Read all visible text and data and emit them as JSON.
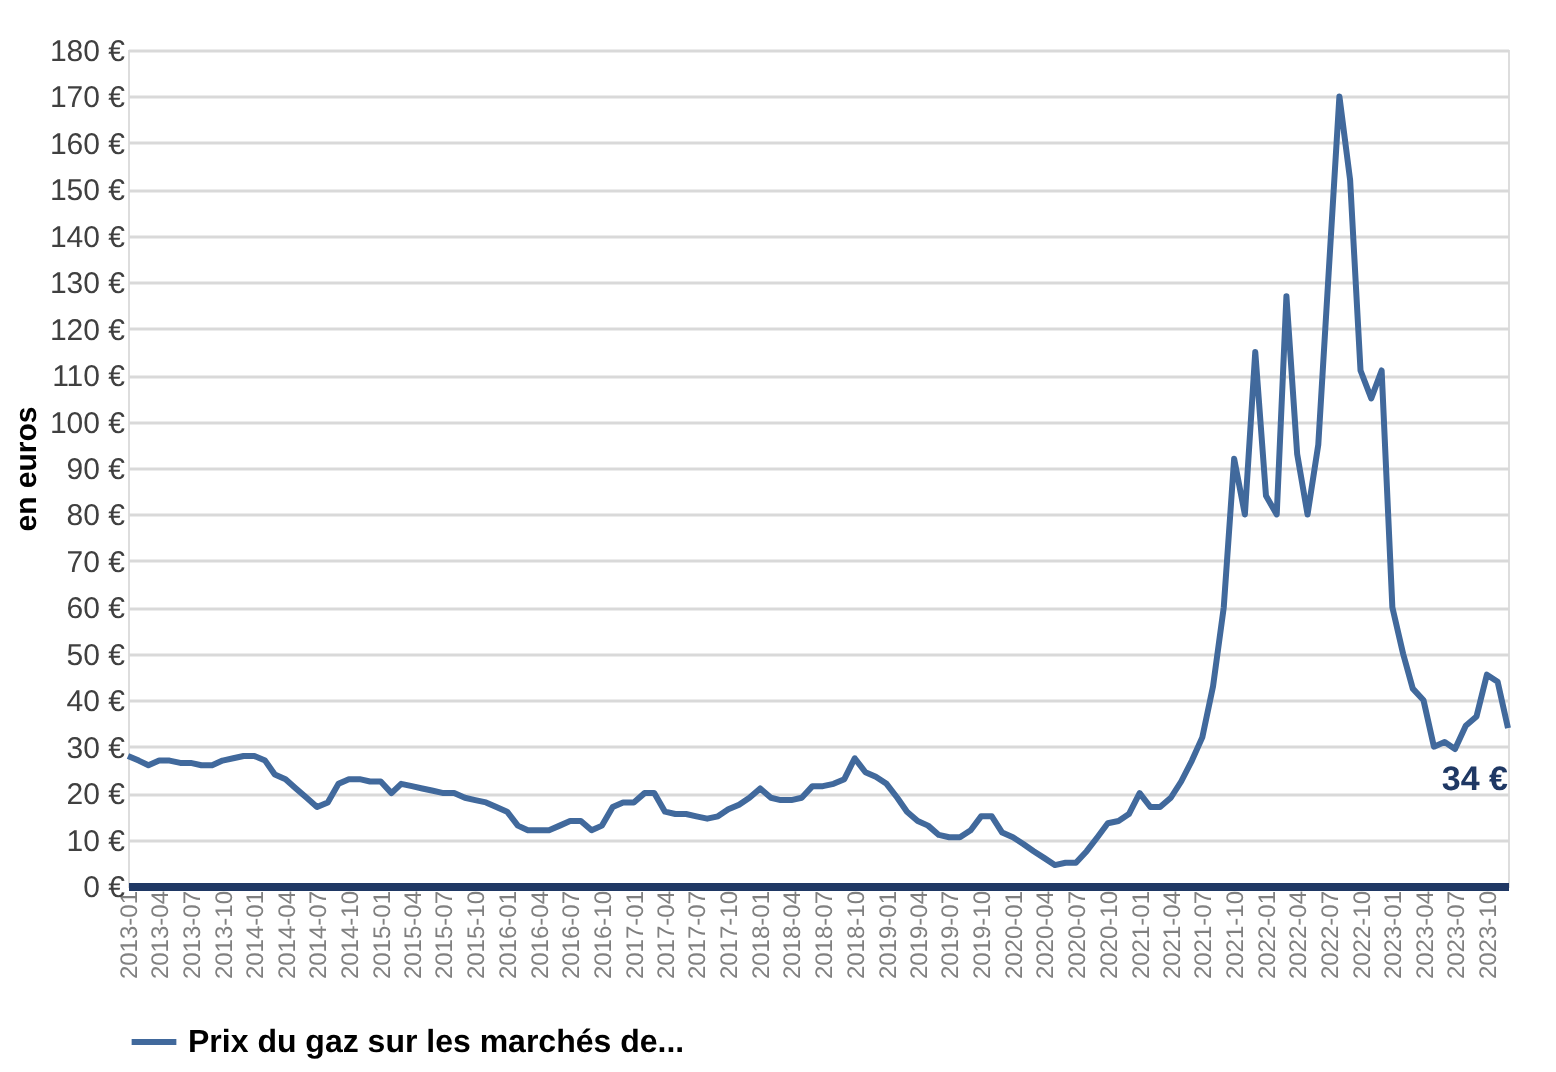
{
  "chart_data": {
    "type": "line",
    "ylabel": "en euros",
    "x": [
      "2013-01",
      "2013-02",
      "2013-03",
      "2013-04",
      "2013-05",
      "2013-06",
      "2013-07",
      "2013-08",
      "2013-09",
      "2013-10",
      "2013-11",
      "2013-12",
      "2014-01",
      "2014-02",
      "2014-03",
      "2014-04",
      "2014-05",
      "2014-06",
      "2014-07",
      "2014-08",
      "2014-09",
      "2014-10",
      "2014-11",
      "2014-12",
      "2015-01",
      "2015-02",
      "2015-03",
      "2015-04",
      "2015-05",
      "2015-06",
      "2015-07",
      "2015-08",
      "2015-09",
      "2015-10",
      "2015-11",
      "2015-12",
      "2016-01",
      "2016-02",
      "2016-03",
      "2016-04",
      "2016-05",
      "2016-06",
      "2016-07",
      "2016-08",
      "2016-09",
      "2016-10",
      "2016-11",
      "2016-12",
      "2017-01",
      "2017-02",
      "2017-03",
      "2017-04",
      "2017-05",
      "2017-06",
      "2017-07",
      "2017-08",
      "2017-09",
      "2017-10",
      "2017-11",
      "2017-12",
      "2018-01",
      "2018-02",
      "2018-03",
      "2018-04",
      "2018-05",
      "2018-06",
      "2018-07",
      "2018-08",
      "2018-09",
      "2018-10",
      "2018-11",
      "2018-12",
      "2019-01",
      "2019-02",
      "2019-03",
      "2019-04",
      "2019-05",
      "2019-06",
      "2019-07",
      "2019-08",
      "2019-09",
      "2019-10",
      "2019-11",
      "2019-12",
      "2020-01",
      "2020-02",
      "2020-03",
      "2020-04",
      "2020-05",
      "2020-06",
      "2020-07",
      "2020-08",
      "2020-09",
      "2020-10",
      "2020-11",
      "2020-12",
      "2021-01",
      "2021-02",
      "2021-03",
      "2021-04",
      "2021-05",
      "2021-06",
      "2021-07",
      "2021-08",
      "2021-09",
      "2021-10",
      "2021-11",
      "2021-12",
      "2022-01",
      "2022-02",
      "2022-03",
      "2022-04",
      "2022-05",
      "2022-06",
      "2022-07",
      "2022-08",
      "2022-09",
      "2022-10",
      "2022-11",
      "2022-12",
      "2023-01",
      "2023-02",
      "2023-03",
      "2023-04",
      "2023-05",
      "2023-06",
      "2023-07",
      "2023-08",
      "2023-09",
      "2023-10",
      "2023-11",
      "2023-12"
    ],
    "series": [
      {
        "name": "Prix du gaz sur les marchés de...",
        "color": "#41699c",
        "values": [
          28,
          27,
          26,
          27,
          27,
          26.5,
          26.5,
          26,
          26,
          27,
          27.5,
          28,
          28,
          27,
          24,
          23,
          21,
          19,
          17,
          18,
          22,
          23,
          23,
          22.5,
          22.5,
          20,
          22,
          21.5,
          21,
          20.5,
          20,
          20,
          19,
          18.5,
          18,
          17,
          16,
          13,
          12,
          12,
          12,
          13,
          14,
          14,
          12,
          13,
          17,
          18,
          18,
          20,
          20,
          16,
          15.5,
          15.5,
          15,
          14.5,
          15,
          16.5,
          17.5,
          19,
          21,
          19,
          18.5,
          18.5,
          19,
          21.5,
          21.5,
          22,
          23,
          27.5,
          24.5,
          23.5,
          22,
          19,
          16,
          14,
          13,
          11,
          10.5,
          10.5,
          12,
          15,
          15,
          11.5,
          10.5,
          9,
          7.5,
          6,
          4.5,
          5,
          5,
          7.5,
          10.5,
          13.5,
          14,
          15.5,
          20,
          17,
          17,
          19,
          22.5,
          27,
          32,
          43,
          60,
          92,
          80,
          115,
          84,
          80,
          127,
          93,
          80,
          95,
          132,
          170,
          152,
          111,
          105,
          111,
          60,
          50,
          42.5,
          40,
          30,
          31,
          29.5,
          34.5,
          36.5,
          45.5,
          44,
          34
        ]
      }
    ],
    "xlim": [
      "2013-01",
      "2023-12"
    ],
    "xticks": [
      "2013-01",
      "2013-04",
      "2013-07",
      "2013-10",
      "2014-01",
      "2014-04",
      "2014-07",
      "2014-10",
      "2015-01",
      "2015-04",
      "2015-07",
      "2015-10",
      "2016-01",
      "2016-04",
      "2016-07",
      "2016-10",
      "2017-01",
      "2017-04",
      "2017-07",
      "2017-10",
      "2018-01",
      "2018-04",
      "2018-07",
      "2018-10",
      "2019-01",
      "2019-04",
      "2019-07",
      "2019-10",
      "2020-01",
      "2020-04",
      "2020-07",
      "2020-10",
      "2021-01",
      "2021-04",
      "2021-07",
      "2021-10",
      "2022-01",
      "2022-04",
      "2022-07",
      "2022-10",
      "2023-01",
      "2023-04",
      "2023-07",
      "2023-10"
    ],
    "ylim": [
      0,
      180
    ],
    "yticks": [
      {
        "value": 0,
        "label": "0 €"
      },
      {
        "value": 10,
        "label": "10 €"
      },
      {
        "value": 20,
        "label": "20 €"
      },
      {
        "value": 30,
        "label": "30 €"
      },
      {
        "value": 40,
        "label": "40 €"
      },
      {
        "value": 50,
        "label": "50 €"
      },
      {
        "value": 60,
        "label": "60 €"
      },
      {
        "value": 70,
        "label": "70 €"
      },
      {
        "value": 80,
        "label": "80 €"
      },
      {
        "value": 90,
        "label": "90 €"
      },
      {
        "value": 100,
        "label": "100 €"
      },
      {
        "value": 110,
        "label": "110 €"
      },
      {
        "value": 120,
        "label": "120 €"
      },
      {
        "value": 130,
        "label": "130 €"
      },
      {
        "value": 140,
        "label": "140 €"
      },
      {
        "value": 150,
        "label": "150 €"
      },
      {
        "value": 160,
        "label": "160 €"
      },
      {
        "value": 170,
        "label": "170 €"
      },
      {
        "value": 180,
        "label": "180 €"
      }
    ],
    "annotations": [
      {
        "text": "34 €",
        "x": "2023-12",
        "y": 34
      }
    ],
    "grid": "y",
    "legend": "bottom",
    "marker": "none",
    "line_style": "solid"
  }
}
